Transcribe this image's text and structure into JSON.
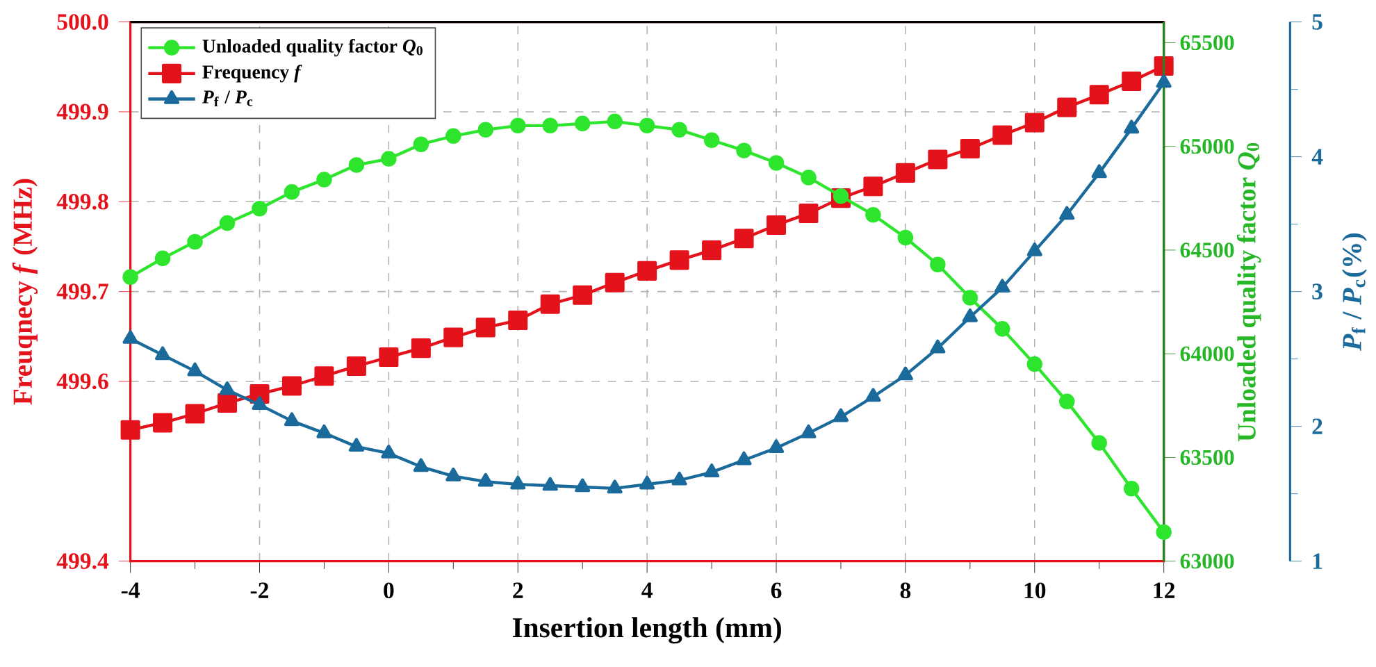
{
  "chart_data": {
    "type": "line",
    "xlabel": "Insertion length (mm)",
    "ylabel": "Freuqnecy *f* (MHz)",
    "y2label": "Unloaded quality factor *Q*$_{0}$",
    "y3label": "*P*$_{f}$ / *P*$_{c}$(%)",
    "x": [
      -4,
      -3.5,
      -3,
      -2.5,
      -2,
      -1.5,
      -1,
      -0.5,
      0,
      0.5,
      1,
      1.5,
      2,
      2.5,
      3,
      3.5,
      4,
      4.5,
      5,
      5.5,
      6,
      6.5,
      7,
      7.5,
      8,
      8.5,
      9,
      9.5,
      10,
      10.5,
      11,
      11.5,
      12
    ],
    "series": [
      {
        "name": "Unloaded quality factor *Q*$_{0}$",
        "color": "#2ee52e",
        "axis": "y2",
        "marker": "circle",
        "values": [
          64370,
          64460,
          64540,
          64630,
          64700,
          64780,
          64840,
          64910,
          64940,
          65010,
          65050,
          65080,
          65100,
          65100,
          65110,
          65120,
          65100,
          65080,
          65030,
          64980,
          64920,
          64850,
          64760,
          64670,
          64560,
          64430,
          64270,
          64120,
          63950,
          63770,
          63570,
          63350,
          63140
        ]
      },
      {
        "name": "Frequency *f*",
        "color": "#e3121b",
        "marker": "square",
        "values": [
          499.546,
          499.554,
          499.564,
          499.576,
          499.586,
          499.595,
          499.606,
          499.617,
          499.627,
          499.637,
          499.649,
          499.66,
          499.668,
          499.686,
          499.696,
          499.71,
          499.723,
          499.735,
          499.746,
          499.759,
          499.774,
          499.787,
          499.804,
          499.817,
          499.832,
          499.847,
          499.859,
          499.874,
          499.888,
          499.905,
          499.919,
          499.934,
          499.951
        ]
      },
      {
        "name": "*P*$_{f}$ / *P*$_{c}$",
        "color": "#1a6a9c",
        "axis": "y3",
        "marker": "triangle",
        "values": [
          2.65,
          2.53,
          2.41,
          2.27,
          2.16,
          2.04,
          1.95,
          1.85,
          1.8,
          1.7,
          1.63,
          1.59,
          1.57,
          1.56,
          1.55,
          1.54,
          1.57,
          1.6,
          1.66,
          1.75,
          1.84,
          1.95,
          2.07,
          2.22,
          2.38,
          2.58,
          2.81,
          3.03,
          3.3,
          3.57,
          3.88,
          4.21,
          4.55
        ]
      }
    ],
    "xlim": [
      -4,
      12
    ],
    "xticks": [
      -4,
      -2,
      0,
      2,
      4,
      6,
      8,
      10,
      12
    ],
    "ylim": [
      499.4,
      500.0
    ],
    "yticks": [
      499.4,
      499.6,
      499.7,
      499.8,
      499.9,
      {
        "value": 500.0,
        "label": "500.0"
      }
    ],
    "y2lim": [
      63000,
      65600
    ],
    "y2ticks": [
      63000,
      63500,
      64000,
      64500,
      65000,
      65500
    ],
    "y3lim": [
      1,
      5
    ],
    "y3ticks": [
      1,
      2,
      3,
      4,
      5
    ],
    "grid": true,
    "legend": "top left",
    "line_style": "solid"
  }
}
